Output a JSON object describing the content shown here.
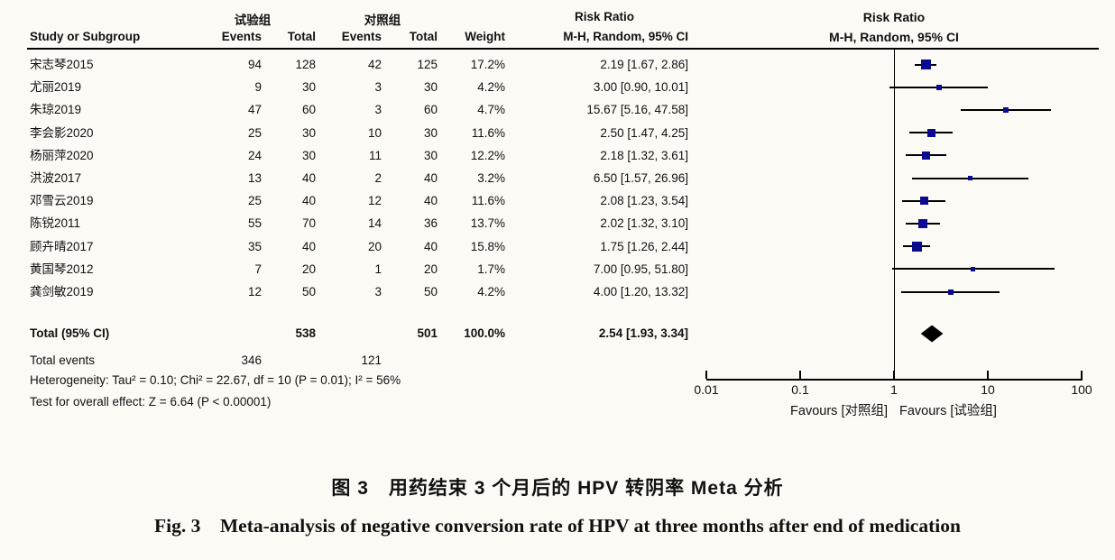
{
  "figure": {
    "table": {
      "group_exp": "试验组",
      "group_ctrl": "对照组",
      "risk_ratio_header": "Risk Ratio",
      "col_study": "Study or Subgroup",
      "col_events": "Events",
      "col_total": "Total",
      "col_weight": "Weight",
      "col_mh": "M-H, Random, 95% CI"
    },
    "plot": {
      "header_line1": "Risk Ratio",
      "header_line2": "M-H, Random, 95% CI",
      "favours_left": "Favours [对照组]",
      "favours_right": "Favours [试验组]"
    },
    "footer": {
      "total_label": "Total (95% CI)",
      "total_events_label": "Total events",
      "heterogeneity": "Heterogeneity: Tau² = 0.10; Chi² = 22.67, df = 10 (P = 0.01); I² = 56%",
      "overall_effect": "Test for overall effect: Z = 6.64 (P < 0.00001)"
    },
    "captions": {
      "zh": "图 3　用药结束 3 个月后的 HPV 转阴率 Meta 分析",
      "en": "Fig. 3　Meta-analysis of negative conversion rate of HPV at three months after end of medication"
    },
    "colors": {
      "marker_square": "#0b0b8f",
      "diamond": "#000000",
      "line": "#000000",
      "background": "#fbfaf5"
    }
  },
  "chart_data": {
    "type": "forest",
    "effect_measure": "Risk Ratio, M-H, Random, 95% CI",
    "x_scale": "log10",
    "x_range": [
      0.01,
      100
    ],
    "x_ticks": [
      "0.01",
      "0.1",
      "1",
      "10",
      "100"
    ],
    "studies": [
      {
        "name": "宋志琴2015",
        "exp_events": "94",
        "exp_total": "128",
        "ctrl_events": "42",
        "ctrl_total": "125",
        "weight": "17.2%",
        "weight_value": 17.2,
        "rr": 2.19,
        "ci_low": 1.67,
        "ci_high": 2.86,
        "rr_text": "2.19 [1.67, 2.86]"
      },
      {
        "name": "尤丽2019",
        "exp_events": "9",
        "exp_total": "30",
        "ctrl_events": "3",
        "ctrl_total": "30",
        "weight": "4.2%",
        "weight_value": 4.2,
        "rr": 3.0,
        "ci_low": 0.9,
        "ci_high": 10.01,
        "rr_text": "3.00 [0.90, 10.01]"
      },
      {
        "name": "朱琼2019",
        "exp_events": "47",
        "exp_total": "60",
        "ctrl_events": "3",
        "ctrl_total": "60",
        "weight": "4.7%",
        "weight_value": 4.7,
        "rr": 15.67,
        "ci_low": 5.16,
        "ci_high": 47.58,
        "rr_text": "15.67 [5.16, 47.58]"
      },
      {
        "name": "李会影2020",
        "exp_events": "25",
        "exp_total": "30",
        "ctrl_events": "10",
        "ctrl_total": "30",
        "weight": "11.6%",
        "weight_value": 11.6,
        "rr": 2.5,
        "ci_low": 1.47,
        "ci_high": 4.25,
        "rr_text": "2.50 [1.47, 4.25]"
      },
      {
        "name": "杨丽萍2020",
        "exp_events": "24",
        "exp_total": "30",
        "ctrl_events": "11",
        "ctrl_total": "30",
        "weight": "12.2%",
        "weight_value": 12.2,
        "rr": 2.18,
        "ci_low": 1.32,
        "ci_high": 3.61,
        "rr_text": "2.18 [1.32, 3.61]"
      },
      {
        "name": "洪波2017",
        "exp_events": "13",
        "exp_total": "40",
        "ctrl_events": "2",
        "ctrl_total": "40",
        "weight": "3.2%",
        "weight_value": 3.2,
        "rr": 6.5,
        "ci_low": 1.57,
        "ci_high": 26.96,
        "rr_text": "6.50 [1.57, 26.96]"
      },
      {
        "name": "邓雪云2019",
        "exp_events": "25",
        "exp_total": "40",
        "ctrl_events": "12",
        "ctrl_total": "40",
        "weight": "11.6%",
        "weight_value": 11.6,
        "rr": 2.08,
        "ci_low": 1.23,
        "ci_high": 3.54,
        "rr_text": "2.08 [1.23, 3.54]"
      },
      {
        "name": "陈锐2011",
        "exp_events": "55",
        "exp_total": "70",
        "ctrl_events": "14",
        "ctrl_total": "36",
        "weight": "13.7%",
        "weight_value": 13.7,
        "rr": 2.02,
        "ci_low": 1.32,
        "ci_high": 3.1,
        "rr_text": "2.02 [1.32, 3.10]"
      },
      {
        "name": "顾卉晴2017",
        "exp_events": "35",
        "exp_total": "40",
        "ctrl_events": "20",
        "ctrl_total": "40",
        "weight": "15.8%",
        "weight_value": 15.8,
        "rr": 1.75,
        "ci_low": 1.26,
        "ci_high": 2.44,
        "rr_text": "1.75 [1.26, 2.44]"
      },
      {
        "name": "黄国琴2012",
        "exp_events": "7",
        "exp_total": "20",
        "ctrl_events": "1",
        "ctrl_total": "20",
        "weight": "1.7%",
        "weight_value": 1.7,
        "rr": 7.0,
        "ci_low": 0.95,
        "ci_high": 51.8,
        "rr_text": "7.00 [0.95, 51.80]"
      },
      {
        "name": "龚剑敏2019",
        "exp_events": "12",
        "exp_total": "50",
        "ctrl_events": "3",
        "ctrl_total": "50",
        "weight": "4.2%",
        "weight_value": 4.2,
        "rr": 4.0,
        "ci_low": 1.2,
        "ci_high": 13.32,
        "rr_text": "4.00 [1.20, 13.32]"
      }
    ],
    "total": {
      "exp_total": "538",
      "ctrl_total": "501",
      "weight": "100.0%",
      "rr": 2.54,
      "ci_low": 1.93,
      "ci_high": 3.34,
      "rr_text": "2.54 [1.93, 3.34]"
    },
    "total_events": {
      "exp": "346",
      "ctrl": "121"
    }
  }
}
